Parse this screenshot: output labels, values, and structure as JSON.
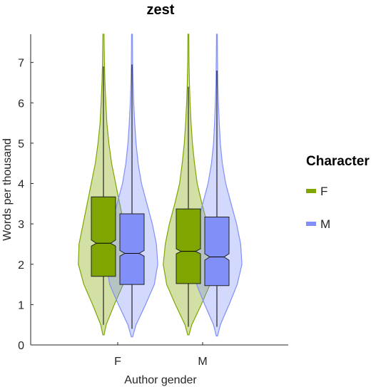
{
  "chart_data": {
    "type": "violin",
    "title": "zest",
    "xlabel": "Author gender",
    "ylabel": "Words per thousand",
    "categories": [
      "F",
      "M"
    ],
    "ylim": [
      0,
      7.7
    ],
    "yticks": [
      0,
      1,
      2,
      3,
      4,
      5,
      6,
      7
    ],
    "grid": false,
    "legend": {
      "title": "Character",
      "position": "right",
      "entries": [
        {
          "name": "F",
          "color": "#7fa500"
        },
        {
          "name": "M",
          "color": "#8090f8"
        }
      ]
    },
    "series": [
      {
        "name": "F",
        "color": "#7fa500",
        "groups": [
          {
            "category": "F",
            "box": {
              "whisker_low": 0.5,
              "q1": 1.7,
              "median": 2.52,
              "q3": 3.67,
              "whisker_high": 6.9,
              "notch_low": 2.45,
              "notch_high": 2.6
            },
            "violin": {
              "min": 0.25,
              "max": 7.7,
              "y": [
                0.25,
                0.5,
                1.0,
                1.5,
                2.0,
                2.5,
                3.0,
                3.5,
                4.0,
                4.5,
                5.0,
                5.5,
                6.0,
                6.5,
                7.0,
                7.7
              ],
              "width": [
                0.01,
                0.04,
                0.16,
                0.29,
                0.37,
                0.36,
                0.3,
                0.24,
                0.18,
                0.12,
                0.08,
                0.05,
                0.035,
                0.022,
                0.014,
                0.008
              ]
            }
          },
          {
            "category": "M",
            "box": {
              "whisker_low": 0.45,
              "q1": 1.52,
              "median": 2.32,
              "q3": 3.37,
              "whisker_high": 6.4,
              "notch_low": 2.26,
              "notch_high": 2.38
            },
            "violin": {
              "min": 0.25,
              "max": 7.7,
              "y": [
                0.25,
                0.5,
                1.0,
                1.5,
                2.0,
                2.5,
                3.0,
                3.5,
                4.0,
                4.5,
                5.0,
                5.5,
                6.0,
                6.5,
                7.0,
                7.7
              ],
              "width": [
                0.01,
                0.05,
                0.19,
                0.32,
                0.37,
                0.34,
                0.28,
                0.2,
                0.13,
                0.09,
                0.06,
                0.04,
                0.025,
                0.016,
                0.01,
                0.006
              ]
            }
          }
        ]
      },
      {
        "name": "M",
        "color": "#8090f8",
        "groups": [
          {
            "category": "F",
            "box": {
              "whisker_low": 0.4,
              "q1": 1.5,
              "median": 2.27,
              "q3": 3.25,
              "whisker_high": 6.95,
              "notch_low": 2.2,
              "notch_high": 2.34
            },
            "violin": {
              "min": 0.2,
              "max": 7.7,
              "y": [
                0.2,
                0.5,
                1.0,
                1.5,
                2.0,
                2.5,
                3.0,
                3.5,
                4.0,
                4.5,
                5.0,
                5.5,
                6.0,
                6.5,
                7.0,
                7.7
              ],
              "width": [
                0.01,
                0.06,
                0.2,
                0.33,
                0.38,
                0.36,
                0.3,
                0.22,
                0.14,
                0.09,
                0.06,
                0.04,
                0.025,
                0.016,
                0.01,
                0.006
              ]
            }
          },
          {
            "category": "M",
            "box": {
              "whisker_low": 0.45,
              "q1": 1.47,
              "median": 2.18,
              "q3": 3.17,
              "whisker_high": 6.8,
              "notch_low": 2.1,
              "notch_high": 2.26
            },
            "violin": {
              "min": 0.22,
              "max": 7.7,
              "y": [
                0.22,
                0.5,
                1.0,
                1.5,
                2.0,
                2.5,
                3.0,
                3.5,
                4.0,
                4.5,
                5.0,
                5.5,
                6.0,
                6.5,
                7.0,
                7.7
              ],
              "width": [
                0.01,
                0.05,
                0.18,
                0.3,
                0.37,
                0.35,
                0.29,
                0.21,
                0.13,
                0.08,
                0.05,
                0.035,
                0.022,
                0.014,
                0.009,
                0.005
              ]
            }
          }
        ]
      }
    ]
  }
}
